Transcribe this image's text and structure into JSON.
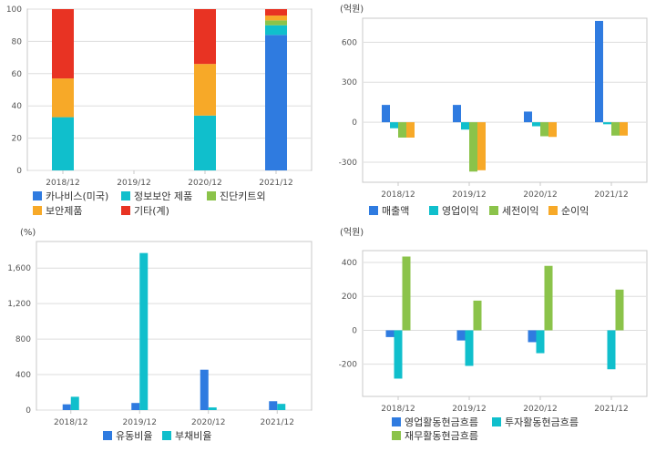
{
  "colors": {
    "blue": "#2f7be0",
    "cyan": "#10bfcc",
    "green": "#8bc34a",
    "orange": "#f7a928",
    "red": "#e83323",
    "grid": "#dddddd",
    "frame": "#c8c8c8"
  },
  "chart_data": [
    {
      "id": "composition",
      "type": "bar",
      "stacked": true,
      "unit": "",
      "categories": [
        "2018/12",
        "2019/12",
        "2020/12",
        "2021/12"
      ],
      "ylim": [
        0,
        100
      ],
      "yticks": [
        0,
        20,
        40,
        60,
        80,
        100
      ],
      "ytick_labels": [
        "0",
        "20",
        "40",
        "60",
        "80",
        "100"
      ],
      "legend_position": "bottom",
      "series": [
        {
          "name": "카나비스(미국)",
          "color": "blue",
          "values": [
            0,
            0,
            0,
            84
          ]
        },
        {
          "name": "정보보안 제품",
          "color": "cyan",
          "values": [
            33,
            0,
            34,
            6
          ]
        },
        {
          "name": "진단키트외",
          "color": "green",
          "values": [
            0,
            0,
            0,
            3
          ]
        },
        {
          "name": "보안제품",
          "color": "orange",
          "values": [
            24,
            0,
            32,
            3
          ]
        },
        {
          "name": "기타(계)",
          "color": "red",
          "values": [
            43,
            0,
            34,
            4
          ]
        }
      ]
    },
    {
      "id": "income",
      "type": "bar",
      "unit": "(억원)",
      "categories": [
        "2018/12",
        "2019/12",
        "2020/12",
        "2021/12"
      ],
      "ylim": [
        -450,
        780
      ],
      "yticks": [
        -300,
        0,
        300,
        600
      ],
      "ytick_labels": [
        "-300",
        "0",
        "300",
        "600"
      ],
      "legend_position": "bottom",
      "series": [
        {
          "name": "매출액",
          "color": "blue",
          "values": [
            130,
            130,
            80,
            760
          ]
        },
        {
          "name": "영업이익",
          "color": "cyan",
          "values": [
            -45,
            -55,
            -30,
            -15
          ]
        },
        {
          "name": "세전이익",
          "color": "green",
          "values": [
            -115,
            -370,
            -105,
            -100
          ]
        },
        {
          "name": "순이익",
          "color": "orange",
          "values": [
            -115,
            -360,
            -110,
            -100
          ]
        }
      ]
    },
    {
      "id": "ratios",
      "type": "bar",
      "unit": "(%)",
      "categories": [
        "2018/12",
        "2019/12",
        "2020/12",
        "2021/12"
      ],
      "ylim": [
        0,
        1900
      ],
      "yticks": [
        0,
        400,
        800,
        1200,
        1600
      ],
      "ytick_labels": [
        "0",
        "400",
        "800",
        "1,200",
        "1,600"
      ],
      "legend_position": "bottom",
      "series": [
        {
          "name": "유동비율",
          "color": "blue",
          "values": [
            65,
            80,
            455,
            100
          ]
        },
        {
          "name": "부채비율",
          "color": "cyan",
          "values": [
            150,
            1770,
            30,
            70
          ]
        }
      ]
    },
    {
      "id": "cashflow",
      "type": "bar",
      "unit": "(억원)",
      "categories": [
        "2018/12",
        "2019/12",
        "2020/12",
        "2021/12"
      ],
      "ylim": [
        -390,
        470
      ],
      "yticks": [
        -200,
        0,
        200,
        400
      ],
      "ytick_labels": [
        "-200",
        "0",
        "200",
        "400"
      ],
      "legend_position": "bottom",
      "series": [
        {
          "name": "영업활동현금흐름",
          "color": "blue",
          "values": [
            -40,
            -60,
            -70,
            0
          ]
        },
        {
          "name": "투자활동현금흐름",
          "color": "cyan",
          "values": [
            -285,
            -210,
            -135,
            -230
          ]
        },
        {
          "name": "재무활동현금흐름",
          "color": "green",
          "values": [
            435,
            175,
            380,
            240
          ]
        }
      ]
    }
  ]
}
